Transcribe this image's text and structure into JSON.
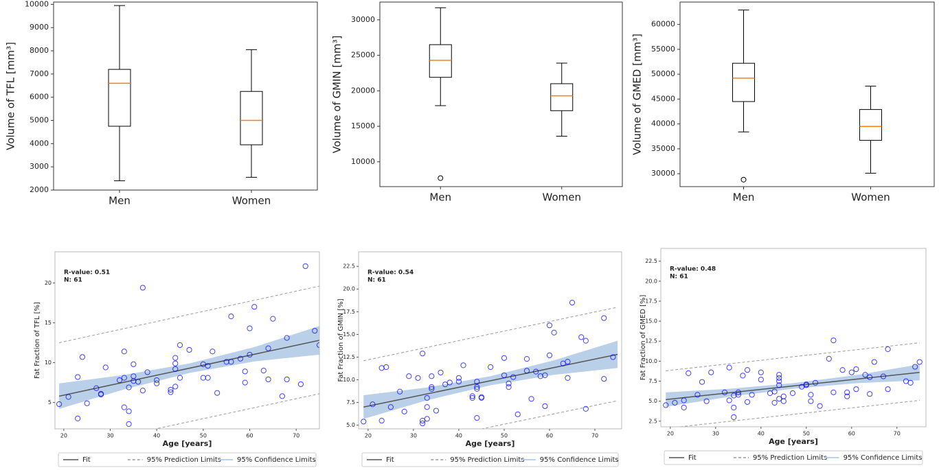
{
  "chart_data": [
    {
      "type": "box",
      "ylabel": "Volume of TFL [mm³]",
      "categories": [
        "Men",
        "Women"
      ],
      "boxes": [
        {
          "min": 2400,
          "q1": 4750,
          "median": 6600,
          "q3": 7200,
          "max": 9950
        },
        {
          "min": 2550,
          "q1": 3950,
          "median": 5000,
          "q3": 6250,
          "max": 8050
        }
      ],
      "ylim": [
        2000,
        10100
      ],
      "yticks": [
        2000,
        3000,
        4000,
        5000,
        6000,
        7000,
        8000,
        9000,
        10000
      ],
      "color": "#000000",
      "median_color": "#ff7f0e"
    },
    {
      "type": "box",
      "ylabel": "Volume of GMIN [mm³]",
      "categories": [
        "Men",
        "Women"
      ],
      "boxes": [
        {
          "min": 17900,
          "q1": 21900,
          "median": 24300,
          "q3": 26500,
          "max": 31700,
          "outliers": [
            7700
          ]
        },
        {
          "min": 13600,
          "q1": 17200,
          "median": 19300,
          "q3": 21000,
          "max": 23900
        }
      ],
      "ylim": [
        6500,
        32500
      ],
      "yticks": [
        10000,
        15000,
        20000,
        25000,
        30000
      ],
      "color": "#000000",
      "median_color": "#ff7f0e"
    },
    {
      "type": "box",
      "ylabel": "Volume of GMED [mm³]",
      "categories": [
        "Men",
        "Women"
      ],
      "boxes": [
        {
          "min": 38400,
          "q1": 44500,
          "median": 49200,
          "q3": 52200,
          "max": 62900,
          "outliers": [
            28800
          ]
        },
        {
          "min": 30100,
          "q1": 36700,
          "median": 39500,
          "q3": 42900,
          "max": 47600
        }
      ],
      "ylim": [
        27400,
        64500
      ],
      "yticks": [
        30000,
        35000,
        40000,
        45000,
        50000,
        55000,
        60000
      ],
      "color": "#000000",
      "median_color": "#ff7f0e"
    },
    {
      "type": "scatter",
      "xlabel": "Age [years]",
      "ylabel": "Fat Fraction of TFL [%]",
      "annotations": [
        "R-value: 0.51",
        "N: 61"
      ],
      "color": "#0000ff",
      "x": [
        19,
        21,
        23,
        23,
        24,
        25,
        27,
        28,
        28,
        29,
        32,
        33,
        33,
        33,
        34,
        34,
        34,
        35,
        35,
        35,
        36,
        37,
        37,
        38,
        40,
        40,
        43,
        43,
        44,
        44,
        44,
        44,
        45,
        45,
        47,
        50,
        50,
        51,
        51,
        52,
        53,
        55,
        56,
        56,
        58,
        59,
        59,
        60,
        60,
        61,
        63,
        64,
        64,
        65,
        67,
        68,
        68,
        71,
        72,
        74,
        75
      ],
      "values": [
        4.8,
        5.7,
        3.0,
        8.2,
        10.7,
        4.9,
        6.8,
        6.1,
        6.0,
        9.4,
        7.8,
        8.1,
        11.4,
        4.4,
        3.9,
        2.3,
        6.9,
        8.3,
        7.7,
        9.8,
        7.6,
        19.4,
        6.5,
        8.8,
        7.8,
        7.4,
        6.3,
        6.6,
        10.6,
        9.9,
        9.2,
        7.0,
        12.2,
        8.1,
        11.6,
        9.8,
        8.1,
        9.6,
        8.1,
        11.4,
        6.2,
        10.1,
        15.8,
        10.1,
        10.5,
        8.9,
        7.5,
        11.0,
        14.3,
        17.0,
        9.0,
        7.9,
        11.8,
        15.5,
        5.8,
        13.1,
        7.9,
        7.3,
        22.1,
        14.0,
        12.2
      ],
      "fit": {
        "name": "Fit",
        "color": "#555555",
        "x": [
          19,
          75
        ],
        "values": [
          5.8,
          12.8
        ]
      },
      "prediction": {
        "name": "95% Prediction Limits",
        "color": "#999999",
        "x": [
          19,
          75
        ],
        "upper": [
          12.5,
          19.6
        ],
        "lower": [
          -0.9,
          6.1
        ]
      },
      "confidence": {
        "name": "95% Confidence Limits",
        "color": "#a9c4e4",
        "x": [
          19,
          33,
          47,
          61,
          75
        ],
        "upper": [
          7.4,
          8.45,
          9.9,
          11.95,
          14.6
        ],
        "lower": [
          4.2,
          6.65,
          8.7,
          10.15,
          11.0
        ]
      },
      "xlim": [
        18.1,
        75.0
      ],
      "xticks": [
        20,
        30,
        40,
        50,
        60,
        70
      ],
      "ylim": [
        1.7,
        23.9
      ],
      "yticks": [
        5,
        10,
        15,
        20
      ]
    },
    {
      "type": "scatter",
      "xlabel": "Age [years]",
      "ylabel": "Fat Fraction of GMIN [%]",
      "annotations": [
        "R-value: 0.54",
        "N: 61"
      ],
      "color": "#0000ff",
      "x": [
        19,
        21,
        23,
        23,
        24,
        25,
        27,
        28,
        29,
        31,
        32,
        32,
        32,
        33,
        33,
        33,
        34,
        34,
        34,
        35,
        36,
        72,
        37,
        38,
        40,
        40,
        41,
        43,
        43,
        44,
        44,
        74,
        44,
        44,
        45,
        45,
        47,
        50,
        50,
        51,
        51,
        52,
        53,
        55,
        55,
        56,
        57,
        58,
        59,
        59,
        60,
        60,
        61,
        63,
        64,
        64,
        65,
        67,
        68,
        68,
        72
      ],
      "values": [
        5.4,
        7.3,
        5.5,
        11.3,
        11.4,
        7.0,
        8.7,
        6.5,
        10.4,
        10.2,
        5.2,
        5.5,
        12.9,
        5.7,
        8.0,
        7.0,
        9.0,
        9.2,
        10.4,
        6.6,
        10.8,
        16.8,
        9.5,
        9.7,
        9.8,
        10.2,
        11.6,
        8.2,
        8.0,
        9.2,
        9.0,
        12.5,
        9.8,
        5.8,
        8.0,
        8.1,
        11.4,
        12.4,
        10.5,
        9.6,
        9.2,
        10.3,
        6.2,
        12.3,
        11.0,
        7.9,
        10.9,
        10.4,
        7.1,
        10.5,
        16.0,
        12.7,
        15.2,
        11.8,
        10.2,
        12.0,
        18.5,
        14.7,
        14.3,
        6.8,
        10.1
      ],
      "fit": {
        "name": "Fit",
        "color": "#555555",
        "x": [
          19,
          75
        ],
        "values": [
          7.0,
          12.8
        ]
      },
      "prediction": {
        "name": "95% Prediction Limits",
        "color": "#999999",
        "x": [
          19,
          75
        ],
        "upper": [
          12.1,
          18.0
        ],
        "lower": [
          1.9,
          7.7
        ]
      },
      "confidence": {
        "name": "95% Confidence Limits",
        "color": "#a9c4e4",
        "x": [
          19,
          33,
          47,
          61,
          75
        ],
        "upper": [
          8.3,
          9.15,
          10.4,
          12.15,
          14.3
        ],
        "lower": [
          5.7,
          7.75,
          9.4,
          10.55,
          11.3
        ]
      },
      "xlim": [
        17.9,
        75.9
      ],
      "xticks": [
        20,
        30,
        40,
        50,
        60,
        70
      ],
      "ylim": [
        4.6,
        24.1
      ],
      "yticks": [
        {
          "value": 5,
          "label": "5.0"
        },
        {
          "value": 7.5,
          "label": "7.5"
        },
        {
          "value": 10,
          "label": "10.0"
        },
        {
          "value": 12.5,
          "label": "12.5"
        },
        {
          "value": 15,
          "label": "15.0"
        },
        {
          "value": 17.5,
          "label": "17.5"
        },
        {
          "value": 20,
          "label": "20.0"
        },
        {
          "value": 22.5,
          "label": "22.5"
        }
      ]
    },
    {
      "type": "scatter",
      "xlabel": "Age [years]",
      "ylabel": "Fat Fraction of GMED [%]",
      "annotations": [
        "R-value: 0.48",
        "N: 61"
      ],
      "color": "#0000ff",
      "x": [
        19,
        21,
        23,
        23,
        24,
        26,
        27,
        28,
        29,
        32,
        33,
        33,
        34,
        34,
        34,
        35,
        35,
        36,
        37,
        37,
        38,
        40,
        40,
        43,
        43,
        44,
        44,
        44,
        44,
        44,
        45,
        45,
        47,
        50,
        50,
        51,
        51,
        52,
        53,
        55,
        56,
        56,
        58,
        59,
        59,
        60,
        61,
        61,
        63,
        64,
        64,
        65,
        67,
        68,
        68,
        72,
        73,
        74,
        75,
        42,
        49
      ],
      "values": [
        4.5,
        4.8,
        5.1,
        4.2,
        8.5,
        5.8,
        7.4,
        5.0,
        8.6,
        6.1,
        9.2,
        5.1,
        4.2,
        3.0,
        5.7,
        5.8,
        6.1,
        8.2,
        8.9,
        4.9,
        5.8,
        8.6,
        7.7,
        6.2,
        4.8,
        8.3,
        7.9,
        7.5,
        7.0,
        5.3,
        5.0,
        5.6,
        6.0,
        7.0,
        7.1,
        5.8,
        5.0,
        7.3,
        4.4,
        10.3,
        12.6,
        6.1,
        8.9,
        5.6,
        6.1,
        8.6,
        6.5,
        9.0,
        8.3,
        8.0,
        5.9,
        9.9,
        8.1,
        11.5,
        6.5,
        7.5,
        7.3,
        9.3,
        9.9,
        6.0,
        6.8
      ],
      "fit": {
        "name": "Fit",
        "color": "#555555",
        "x": [
          19,
          75
        ],
        "values": [
          5.2,
          8.6
        ]
      },
      "prediction": {
        "name": "95% Prediction Limits",
        "color": "#999999",
        "x": [
          19,
          75
        ],
        "upper": [
          8.8,
          12.3
        ],
        "lower": [
          1.6,
          5.1
        ]
      },
      "confidence": {
        "name": "95% Confidence Limits",
        "color": "#a9c4e4",
        "x": [
          19,
          33,
          47,
          61,
          75
        ],
        "upper": [
          6.1,
          6.55,
          7.25,
          8.25,
          9.6
        ],
        "lower": [
          4.3,
          5.55,
          6.55,
          7.25,
          7.6
        ]
      },
      "xlim": [
        17.9,
        76.4
      ],
      "xticks": [
        20,
        30,
        40,
        50,
        60,
        70
      ],
      "ylim": [
        1.8,
        24.1
      ],
      "yticks": [
        {
          "value": 2.5,
          "label": "2.5"
        },
        {
          "value": 5,
          "label": "5.0"
        },
        {
          "value": 7.5,
          "label": "7.5"
        },
        {
          "value": 10,
          "label": "10.0"
        },
        {
          "value": 12.5,
          "label": "12.5"
        },
        {
          "value": 15,
          "label": "15.0"
        },
        {
          "value": 17.5,
          "label": "17.5"
        },
        {
          "value": 20,
          "label": "20.0"
        },
        {
          "value": 22.5,
          "label": "22.5"
        }
      ]
    }
  ]
}
